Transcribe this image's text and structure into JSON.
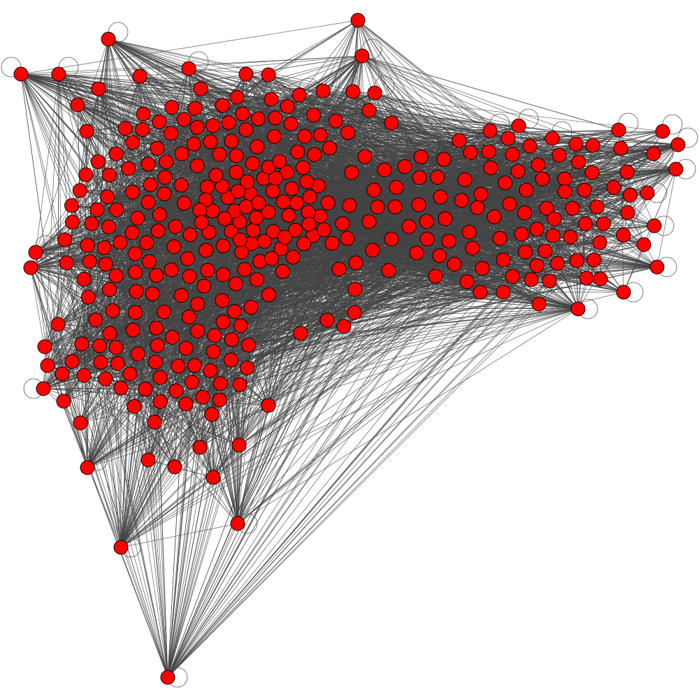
{
  "graph": {
    "type": "network",
    "directed": false,
    "node_count_visible": 420,
    "colors": {
      "node_fill": "#ff0000",
      "node_stroke": "#000000",
      "edge": "#444444",
      "background": "#ffffff"
    }
  }
}
